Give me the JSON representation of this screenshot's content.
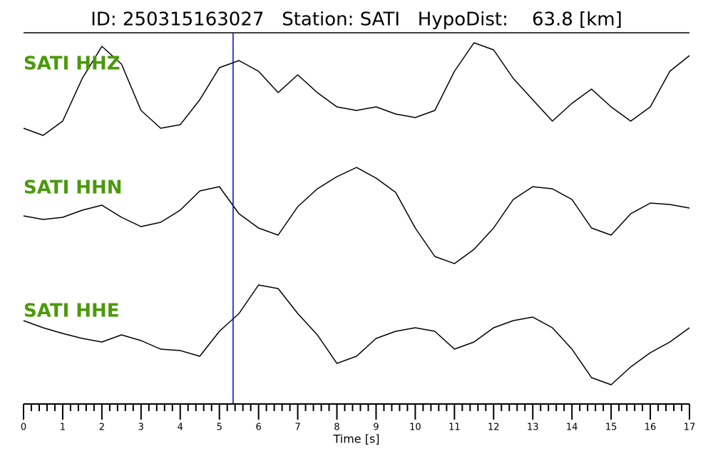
{
  "chart_data": {
    "type": "line",
    "title": "ID: 250315163027   Station: SATI   HypoDist:    63.8 [km]",
    "xlabel": "Time [s]",
    "xlim": [
      0,
      17
    ],
    "xticks": [
      0,
      1,
      2,
      3,
      4,
      5,
      6,
      7,
      8,
      9,
      10,
      11,
      12,
      13,
      14,
      15,
      16,
      17
    ],
    "ylim": [
      -90,
      90
    ],
    "pick_time": 5.35,
    "pick_color": "#0000cc",
    "x": [
      0,
      0.5,
      1,
      1.5,
      2,
      2.5,
      3,
      3.5,
      4,
      4.5,
      5,
      5.5,
      6,
      6.5,
      7,
      7.5,
      8,
      8.5,
      9,
      9.5,
      10,
      10.5,
      11,
      11.5,
      12,
      12.5,
      13,
      13.5,
      14,
      14.5,
      15,
      15.5,
      16,
      16.5,
      17
    ],
    "series": [
      {
        "name": "SATI HHZ",
        "color": "#000000",
        "values": [
          -55,
          -65,
          -45,
          15,
          60,
          35,
          -30,
          -55,
          -50,
          -15,
          30,
          40,
          25,
          -5,
          20,
          -5,
          -25,
          -30,
          -25,
          -35,
          -40,
          -30,
          25,
          65,
          55,
          15,
          -15,
          -45,
          -20,
          0,
          -25,
          -45,
          -25,
          25,
          47
        ]
      },
      {
        "name": "SATI HHN",
        "color": "#000000",
        "values": [
          -3,
          -8,
          -5,
          5,
          12,
          -5,
          -18,
          -12,
          5,
          32,
          38,
          0,
          -20,
          -30,
          10,
          35,
          52,
          65,
          50,
          30,
          -20,
          -60,
          -70,
          -50,
          -20,
          20,
          38,
          35,
          20,
          -20,
          -30,
          0,
          15,
          13,
          8
        ]
      },
      {
        "name": "SATI HHE",
        "color": "#000000",
        "values": [
          20,
          10,
          2,
          -5,
          -10,
          0,
          -8,
          -20,
          -22,
          -30,
          5,
          30,
          70,
          65,
          30,
          0,
          -40,
          -30,
          -5,
          5,
          10,
          5,
          -20,
          -10,
          10,
          20,
          25,
          10,
          -20,
          -60,
          -70,
          -45,
          -25,
          -10,
          10
        ]
      }
    ]
  }
}
